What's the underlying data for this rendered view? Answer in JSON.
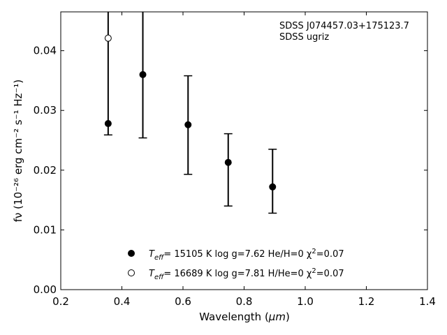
{
  "chart_data": {
    "type": "scatter",
    "xlabel_main": "Wavelength (",
    "xlabel_unit": "μm",
    "xlabel_close": ")",
    "ylabel": "fν (10⁻²⁶ erg cm⁻² s⁻¹ Hz⁻¹)",
    "xlim": [
      0.2,
      1.4
    ],
    "ylim": [
      0.0,
      0.0465
    ],
    "x_ticks": [
      "0.2",
      "0.4",
      "0.6",
      "0.8",
      "1.0",
      "1.2",
      "1.4"
    ],
    "y_ticks": [
      "0.00",
      "0.01",
      "0.02",
      "0.03",
      "0.04"
    ],
    "annotations": [
      "SDSS J074457.03+175123.7",
      "SDSS ugriz"
    ],
    "observed": {
      "x": [
        0.3551,
        0.4686,
        0.6166,
        0.748,
        0.8932
      ],
      "y": [
        0.0278,
        0.036,
        0.0276,
        0.0213,
        0.0172
      ],
      "err_low": [
        0.0259,
        0.0254,
        0.0193,
        0.014,
        0.0128
      ],
      "err_high": [
        0.049,
        0.049,
        0.0358,
        0.0261,
        0.0235
      ]
    },
    "series": [
      {
        "name": "T_eff= 15105 K  log g=7.62  He/H=0  χ²=0.07",
        "legend": {
          "t": "T",
          "sub": "eff",
          "rest": "= 15105 K  log g=7.62  He/H=0  χ",
          "sup": "2",
          "tail": "=0.07"
        },
        "marker": "filled",
        "x": [
          0.3551,
          0.4686,
          0.6166,
          0.748,
          0.8932
        ],
        "y": [
          0.0278,
          0.036,
          0.0276,
          0.0213,
          0.0172
        ]
      },
      {
        "name": "T_eff= 16689 K  log g=7.81  H/He=0  χ²=0.07",
        "legend": {
          "t": "T",
          "sub": "eff",
          "rest": "= 16689 K  log g=7.81  H/He=0  χ",
          "sup": "2",
          "tail": "=0.07"
        },
        "marker": "open",
        "x": [
          0.3551
        ],
        "y": [
          0.0421
        ]
      }
    ],
    "legend_position": "lower-center",
    "grid": false,
    "colors": {
      "marker": "#000000",
      "axis": "#000000",
      "background": "#ffffff"
    }
  }
}
